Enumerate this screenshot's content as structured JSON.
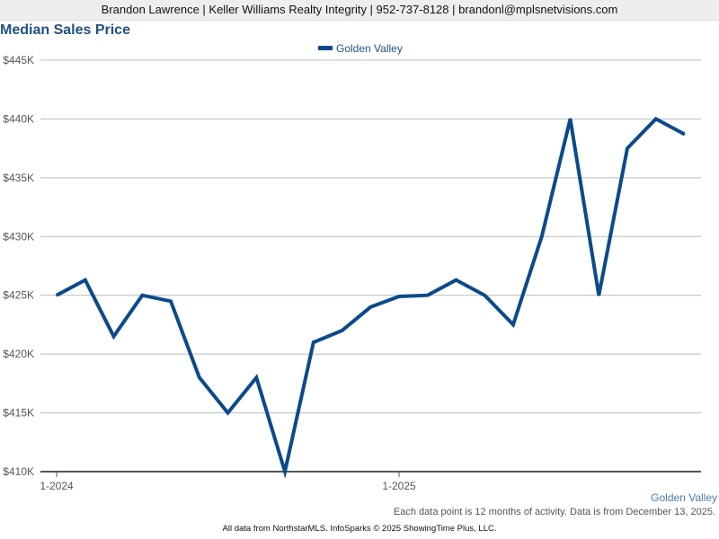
{
  "header": {
    "contact": "Brandon Lawrence | Keller Williams Realty Integrity | 952-737-8128 | brandonl@mplsnetvisions.com"
  },
  "series_caption": "Golden Valley",
  "footnote": "Each data point is 12 months of activity. Data is from December 13, 2025.",
  "footer": "All data from NorthstarMLS. InfoSparks © 2025 ShowingTime Plus, LLC.",
  "colors": {
    "line": "#0b4a8b",
    "grid": "#bbbbbb",
    "axis": "#555555",
    "legend_text": "#23507f"
  },
  "chart_data": {
    "type": "line",
    "title": "Median Sales Price",
    "xlabel": "",
    "ylabel": "",
    "x_ticks": [
      {
        "index": 0,
        "label": "1-2024"
      },
      {
        "index": 12,
        "label": "1-2025"
      }
    ],
    "ylim": [
      410000,
      445000
    ],
    "y_ticks": [
      {
        "value": 410000,
        "label": "$410K"
      },
      {
        "value": 415000,
        "label": "$415K"
      },
      {
        "value": 420000,
        "label": "$420K"
      },
      {
        "value": 425000,
        "label": "$425K"
      },
      {
        "value": 430000,
        "label": "$430K"
      },
      {
        "value": 435000,
        "label": "$435K"
      },
      {
        "value": 440000,
        "label": "$440K"
      },
      {
        "value": 445000,
        "label": "$445K"
      }
    ],
    "grid": true,
    "legend_position": "top-center",
    "series": [
      {
        "name": "Golden Valley",
        "values": [
          425000,
          426300,
          421500,
          425000,
          424500,
          418000,
          415000,
          418000,
          410000,
          421000,
          422000,
          424000,
          424900,
          425000,
          426300,
          425000,
          422500,
          430000,
          440000,
          425000,
          437500,
          440000,
          438700
        ]
      }
    ]
  }
}
